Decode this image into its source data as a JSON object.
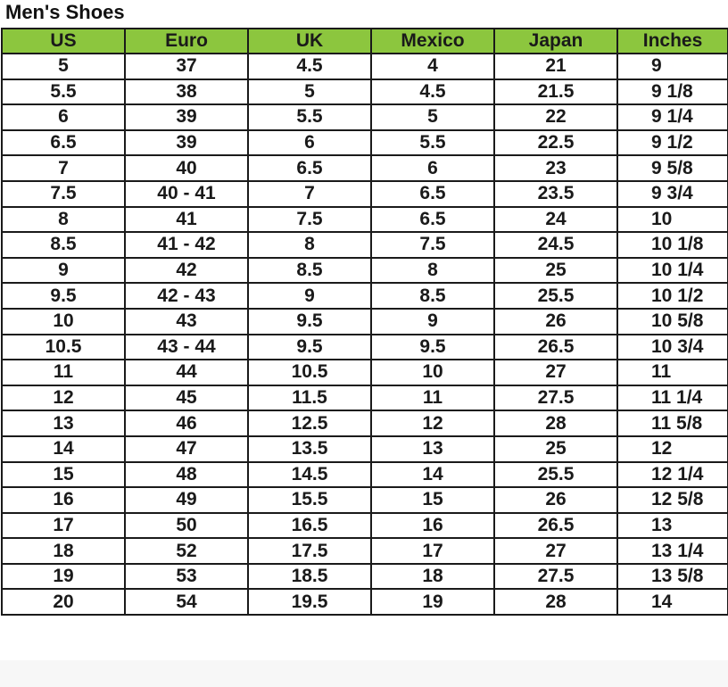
{
  "title": "Men's Shoes",
  "colors": {
    "header_bg": "#8cc63e",
    "border": "#1a1a1a"
  },
  "columns": [
    "US",
    "Euro",
    "UK",
    "Mexico",
    "Japan",
    "Inches"
  ],
  "rows": [
    [
      "5",
      "37",
      "4.5",
      "4",
      "21",
      "9"
    ],
    [
      "5.5",
      "38",
      "5",
      "4.5",
      "21.5",
      "9 1/8"
    ],
    [
      "6",
      "39",
      "5.5",
      "5",
      "22",
      "9 1/4"
    ],
    [
      "6.5",
      "39",
      "6",
      "5.5",
      "22.5",
      "9 1/2"
    ],
    [
      "7",
      "40",
      "6.5",
      "6",
      "23",
      "9 5/8"
    ],
    [
      "7.5",
      "40 - 41",
      "7",
      "6.5",
      "23.5",
      "9 3/4"
    ],
    [
      "8",
      "41",
      "7.5",
      "6.5",
      "24",
      "10"
    ],
    [
      "8.5",
      "41 - 42",
      "8",
      "7.5",
      "24.5",
      "10 1/8"
    ],
    [
      "9",
      "42",
      "8.5",
      "8",
      "25",
      "10 1/4"
    ],
    [
      "9.5",
      "42 - 43",
      "9",
      "8.5",
      "25.5",
      "10 1/2"
    ],
    [
      "10",
      "43",
      "9.5",
      "9",
      "26",
      "10 5/8"
    ],
    [
      "10.5",
      "43 - 44",
      "9.5",
      "9.5",
      "26.5",
      "10 3/4"
    ],
    [
      "11",
      "44",
      "10.5",
      "10",
      "27",
      "11"
    ],
    [
      "12",
      "45",
      "11.5",
      "11",
      "27.5",
      "11 1/4"
    ],
    [
      "13",
      "46",
      "12.5",
      "12",
      "28",
      "11 5/8"
    ],
    [
      "14",
      "47",
      "13.5",
      "13",
      "25",
      "12"
    ],
    [
      "15",
      "48",
      "14.5",
      "14",
      "25.5",
      "12 1/4"
    ],
    [
      "16",
      "49",
      "15.5",
      "15",
      "26",
      "12 5/8"
    ],
    [
      "17",
      "50",
      "16.5",
      "16",
      "26.5",
      "13"
    ],
    [
      "18",
      "52",
      "17.5",
      "17",
      "27",
      "13 1/4"
    ],
    [
      "19",
      "53",
      "18.5",
      "18",
      "27.5",
      "13 5/8"
    ],
    [
      "20",
      "54",
      "19.5",
      "19",
      "28",
      "14"
    ]
  ]
}
